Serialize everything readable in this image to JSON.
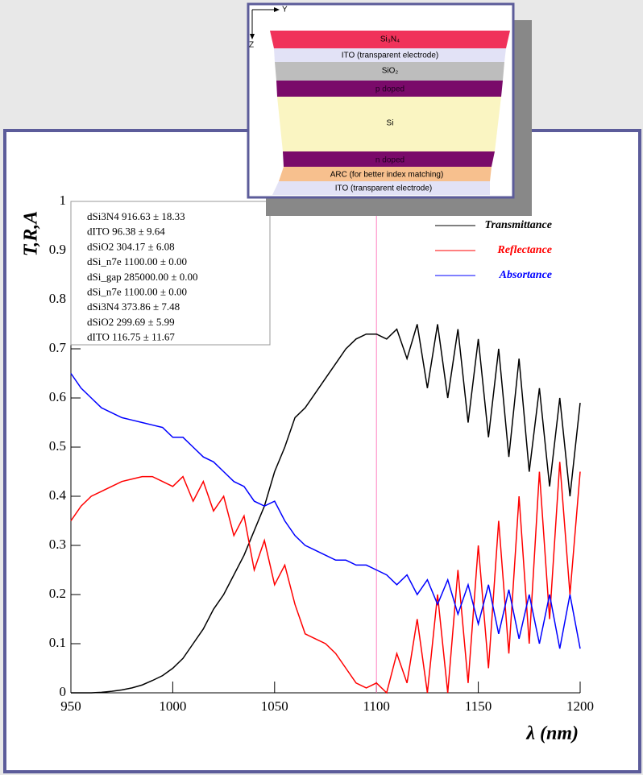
{
  "chart_data": {
    "type": "line",
    "x": [
      950,
      955,
      960,
      965,
      970,
      975,
      980,
      985,
      990,
      995,
      1000,
      1005,
      1010,
      1015,
      1020,
      1025,
      1030,
      1035,
      1040,
      1045,
      1050,
      1055,
      1060,
      1065,
      1070,
      1075,
      1080,
      1085,
      1090,
      1095,
      1100,
      1105,
      1110,
      1115,
      1120,
      1125,
      1130,
      1135,
      1140,
      1145,
      1150,
      1155,
      1160,
      1165,
      1170,
      1175,
      1180,
      1185,
      1190,
      1195,
      1200
    ],
    "series": [
      {
        "name": "Transmittance",
        "color": "#000000",
        "values": [
          0,
          0,
          0,
          0.001,
          0.003,
          0.006,
          0.01,
          0.016,
          0.025,
          0.035,
          0.05,
          0.07,
          0.1,
          0.13,
          0.17,
          0.2,
          0.24,
          0.28,
          0.33,
          0.38,
          0.45,
          0.5,
          0.56,
          0.58,
          0.61,
          0.64,
          0.67,
          0.7,
          0.72,
          0.73,
          0.73,
          0.72,
          0.74,
          0.68,
          0.75,
          0.62,
          0.75,
          0.6,
          0.74,
          0.55,
          0.72,
          0.52,
          0.7,
          0.48,
          0.68,
          0.45,
          0.62,
          0.42,
          0.6,
          0.4,
          0.59
        ]
      },
      {
        "name": "Reflectance",
        "color": "#ff0000",
        "values": [
          0.35,
          0.38,
          0.4,
          0.41,
          0.42,
          0.43,
          0.435,
          0.44,
          0.44,
          0.43,
          0.42,
          0.44,
          0.39,
          0.43,
          0.37,
          0.4,
          0.32,
          0.36,
          0.25,
          0.31,
          0.22,
          0.26,
          0.18,
          0.12,
          0.11,
          0.1,
          0.08,
          0.05,
          0.02,
          0.01,
          0.02,
          0,
          0.08,
          0.02,
          0.15,
          0,
          0.2,
          0,
          0.25,
          0.02,
          0.3,
          0.05,
          0.35,
          0.08,
          0.4,
          0.1,
          0.45,
          0.15,
          0.47,
          0.2,
          0.45
        ]
      },
      {
        "name": "Absortance",
        "color": "#0000ff",
        "values": [
          0.65,
          0.62,
          0.6,
          0.58,
          0.57,
          0.56,
          0.555,
          0.55,
          0.545,
          0.54,
          0.52,
          0.52,
          0.5,
          0.48,
          0.47,
          0.45,
          0.43,
          0.42,
          0.39,
          0.38,
          0.39,
          0.35,
          0.32,
          0.3,
          0.29,
          0.28,
          0.27,
          0.27,
          0.26,
          0.26,
          0.25,
          0.24,
          0.22,
          0.24,
          0.2,
          0.23,
          0.18,
          0.23,
          0.16,
          0.22,
          0.14,
          0.22,
          0.12,
          0.21,
          0.11,
          0.2,
          0.1,
          0.2,
          0.09,
          0.2,
          0.09
        ]
      }
    ],
    "xlim": [
      950,
      1200
    ],
    "ylim": [
      0,
      1
    ],
    "xticks": [
      950,
      1000,
      1050,
      1100,
      1150,
      1200
    ],
    "yticks": [
      0,
      0.1,
      0.2,
      0.3,
      0.4,
      0.5,
      0.6,
      0.7,
      0.8,
      0.9,
      1
    ],
    "x_label": "λ (nm)",
    "y_label": "T,R,A",
    "marker_x": 1100,
    "marker_color": "#ff80c0",
    "legend": "upper right",
    "stats": [
      "dSi3N4  916.63 ± 18.33",
      "dITO  96.38 ± 9.64",
      "dSiO2  304.17 ± 6.08",
      "dSi_n7e  1100.00 ± 0.00",
      "dSi_gap  285000.00 ± 0.00",
      "dSi_n7e  1100.00 ± 0.00",
      "dSi3N4  373.86 ± 7.48",
      "dSiO2  299.69 ± 5.99",
      "dITO  116.75 ± 11.67"
    ]
  },
  "diagram": {
    "axis_y": "Y",
    "axis_z": "Z",
    "layers": [
      "Si₃N₄",
      "ITO (transparent electrode)",
      "SiO₂",
      "p doped",
      "Si",
      "n doped",
      "ARC (for better index matching)",
      "ITO (transparent electrode)"
    ]
  }
}
